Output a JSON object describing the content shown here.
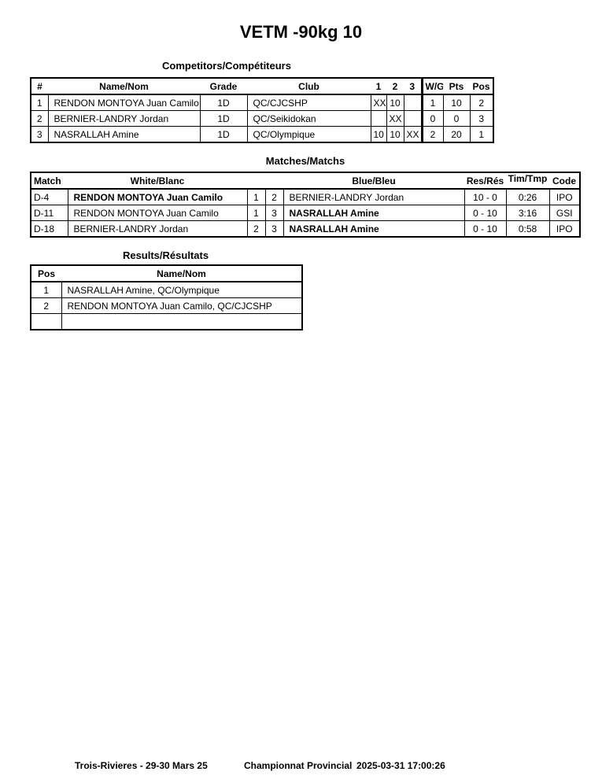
{
  "title": "VETM -90kg 10",
  "competitors": {
    "heading": "Competitors/Compétiteurs",
    "columns": [
      "#",
      "Name/Nom",
      "Grade",
      "Club",
      "1",
      "2",
      "3",
      "W/G",
      "Pts",
      "Pos"
    ],
    "rows": [
      [
        "1",
        "RENDON MONTOYA Juan Camilo",
        "1D",
        "QC/CJCSHP",
        "XX",
        "10",
        "",
        "1",
        "10",
        "2"
      ],
      [
        "2",
        "BERNIER-LANDRY Jordan",
        "1D",
        "QC/Seikidokan",
        "",
        "XX",
        "",
        "0",
        "0",
        "3"
      ],
      [
        "3",
        "NASRALLAH Amine",
        "1D",
        "QC/Olympique",
        "10",
        "10",
        "XX",
        "2",
        "20",
        "1"
      ]
    ]
  },
  "matches": {
    "heading": "Matches/Matchs",
    "columns": [
      "Match",
      "White/Blanc",
      "Blue/Bleu",
      "Res/Rés",
      "Tim/Tmp",
      "Code"
    ],
    "rows": [
      {
        "match": "D-4",
        "white": "RENDON MONTOYA Juan Camilo",
        "white_no": "1",
        "blue_no": "2",
        "blue": "BERNIER-LANDRY Jordan",
        "res": "10 - 0",
        "time": "0:26",
        "code": "IPO",
        "winner": "white"
      },
      {
        "match": "D-11",
        "white": "RENDON MONTOYA Juan Camilo",
        "white_no": "1",
        "blue_no": "3",
        "blue": "NASRALLAH Amine",
        "res": "0 - 10",
        "time": "3:16",
        "code": "GSI",
        "winner": "blue"
      },
      {
        "match": "D-18",
        "white": "BERNIER-LANDRY Jordan",
        "white_no": "2",
        "blue_no": "3",
        "blue": "NASRALLAH Amine",
        "res": "0 - 10",
        "time": "0:58",
        "code": "IPO",
        "winner": "blue"
      }
    ]
  },
  "results": {
    "heading": "Results/Résultats",
    "columns": [
      "Pos",
      "Name/Nom"
    ],
    "rows": [
      [
        "1",
        "NASRALLAH Amine, QC/Olympique"
      ],
      [
        "2",
        "RENDON MONTOYA Juan Camilo, QC/CJCSHP"
      ],
      [
        "",
        ""
      ]
    ]
  },
  "footer": {
    "location": "Trois-Rivieres - 29-30 Mars 25",
    "event": "Championnat Provincial",
    "printed": "2025-03-31 17:00:26"
  }
}
